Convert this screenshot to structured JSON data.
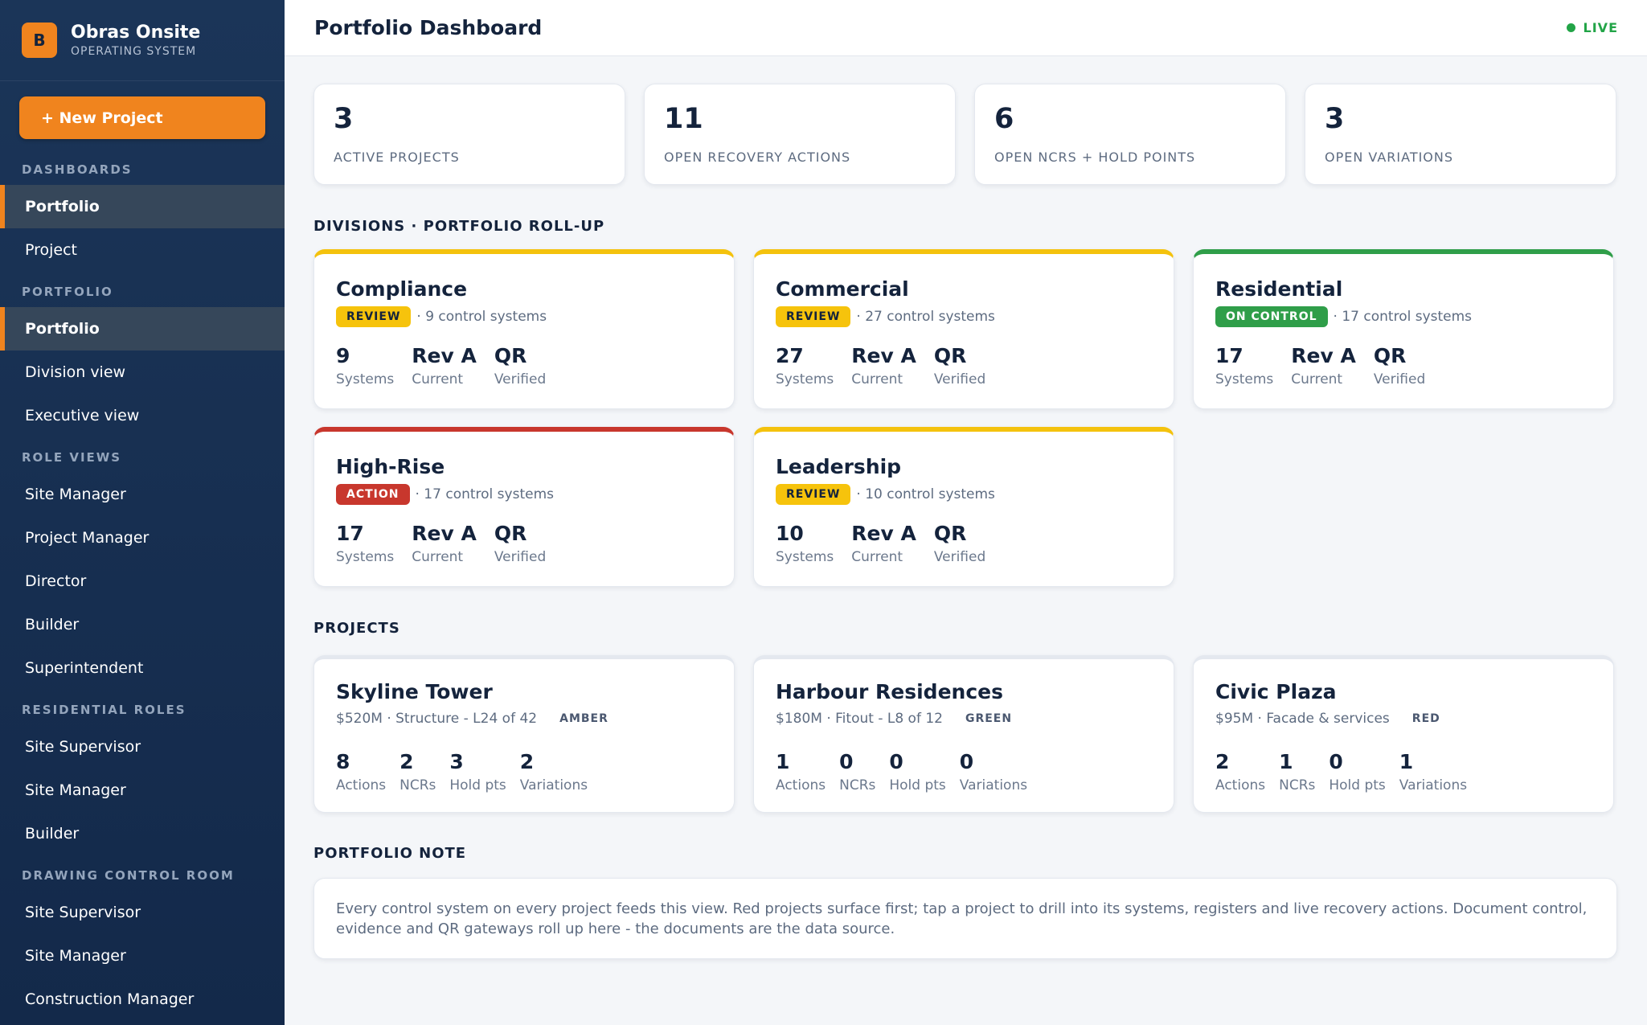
{
  "brand": {
    "logo_letter": "B",
    "name": "Obras Onsite",
    "subtitle": "OPERATING SYSTEM"
  },
  "sidebar": {
    "new_project_label": "+ New Project",
    "sections": [
      {
        "title": "DASHBOARDS",
        "items": [
          {
            "label": "Portfolio",
            "active": true
          },
          {
            "label": "Project",
            "active": false
          }
        ]
      },
      {
        "title": "PORTFOLIO",
        "items": [
          {
            "label": "Portfolio",
            "active": true
          },
          {
            "label": "Division view",
            "active": false
          },
          {
            "label": "Executive view",
            "active": false
          }
        ]
      },
      {
        "title": "ROLE VIEWS",
        "items": [
          {
            "label": "Site Manager"
          },
          {
            "label": "Project Manager"
          },
          {
            "label": "Director"
          },
          {
            "label": "Builder"
          },
          {
            "label": "Superintendent"
          }
        ]
      },
      {
        "title": "RESIDENTIAL ROLES",
        "items": [
          {
            "label": "Site Supervisor"
          },
          {
            "label": "Site Manager"
          },
          {
            "label": "Builder"
          }
        ]
      },
      {
        "title": "DRAWING CONTROL ROOM",
        "items": [
          {
            "label": "Site Supervisor"
          },
          {
            "label": "Site Manager"
          },
          {
            "label": "Construction Manager"
          }
        ]
      }
    ]
  },
  "header": {
    "title": "Portfolio Dashboard",
    "live_label": "LIVE"
  },
  "kpis": [
    {
      "value": "3",
      "label": "Active projects"
    },
    {
      "value": "11",
      "label": "Open recovery actions"
    },
    {
      "value": "6",
      "label": "Open NCRs + Hold points"
    },
    {
      "value": "3",
      "label": "Open variations"
    }
  ],
  "divisions_title": "Divisions · Portfolio roll-up",
  "divisions": [
    {
      "name": "Compliance",
      "status": "REVIEW",
      "status_key": "review",
      "systems_text": "· 9 control systems",
      "stats": [
        {
          "value": "9",
          "label": "Systems"
        },
        {
          "value": "Rev A",
          "label": "Current"
        },
        {
          "value": "QR",
          "label": "Verified"
        }
      ]
    },
    {
      "name": "Commercial",
      "status": "REVIEW",
      "status_key": "review",
      "systems_text": "· 27 control systems",
      "stats": [
        {
          "value": "27",
          "label": "Systems"
        },
        {
          "value": "Rev A",
          "label": "Current"
        },
        {
          "value": "QR",
          "label": "Verified"
        }
      ]
    },
    {
      "name": "Residential",
      "status": "ON CONTROL",
      "status_key": "on-control",
      "systems_text": "· 17 control systems",
      "stats": [
        {
          "value": "17",
          "label": "Systems"
        },
        {
          "value": "Rev A",
          "label": "Current"
        },
        {
          "value": "QR",
          "label": "Verified"
        }
      ]
    },
    {
      "name": "High-Rise",
      "status": "ACTION",
      "status_key": "action",
      "systems_text": "· 17 control systems",
      "stats": [
        {
          "value": "17",
          "label": "Systems"
        },
        {
          "value": "Rev A",
          "label": "Current"
        },
        {
          "value": "QR",
          "label": "Verified"
        }
      ]
    },
    {
      "name": "Leadership",
      "status": "REVIEW",
      "status_key": "review",
      "systems_text": "· 10 control systems",
      "stats": [
        {
          "value": "10",
          "label": "Systems"
        },
        {
          "value": "Rev A",
          "label": "Current"
        },
        {
          "value": "QR",
          "label": "Verified"
        }
      ]
    }
  ],
  "projects_title": "Projects",
  "projects": [
    {
      "name": "Skyline Tower",
      "meta": "$520M · Structure - L24 of 42",
      "rag": "AMBER",
      "stats": [
        {
          "value": "8",
          "label": "Actions"
        },
        {
          "value": "2",
          "label": "NCRs"
        },
        {
          "value": "3",
          "label": "Hold pts"
        },
        {
          "value": "2",
          "label": "Variations"
        }
      ]
    },
    {
      "name": "Harbour Residences",
      "meta": "$180M · Fitout - L8 of 12",
      "rag": "GREEN",
      "stats": [
        {
          "value": "1",
          "label": "Actions"
        },
        {
          "value": "0",
          "label": "NCRs"
        },
        {
          "value": "0",
          "label": "Hold pts"
        },
        {
          "value": "0",
          "label": "Variations"
        }
      ]
    },
    {
      "name": "Civic Plaza",
      "meta": "$95M · Facade & services",
      "rag": "RED",
      "stats": [
        {
          "value": "2",
          "label": "Actions"
        },
        {
          "value": "1",
          "label": "NCRs"
        },
        {
          "value": "0",
          "label": "Hold pts"
        },
        {
          "value": "1",
          "label": "Variations"
        }
      ]
    }
  ],
  "note_title": "Portfolio note",
  "note_text": "Every control system on every project feeds this view. Red projects surface first; tap a project to drill into its systems, registers and live recovery actions. Document control, evidence and QR gateways roll up here - the documents are the data source.",
  "colors": {
    "accent": "#f0841e",
    "sidebar_bg": "#1b3558",
    "live": "#22a447",
    "review": "#f6c30c",
    "on_control": "#2f9e49",
    "action": "#c8372d"
  }
}
